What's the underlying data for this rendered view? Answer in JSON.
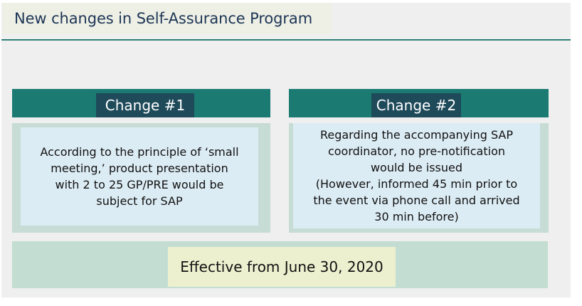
{
  "title": "New changes in Self-Assurance Program",
  "changes": [
    {
      "label": "Change #1",
      "text": "According to the principle of ‘small\nmeeting,’ product presentation\nwith 2 to 25 GP/PRE would be\nsubject for SAP"
    },
    {
      "label": "Change #2",
      "text": "Regarding the accompanying SAP\ncoordinator, no pre-notification\nwould be issued\n(However, informed 45 min prior to\nthe event via phone call and arrived\n30 min before)"
    }
  ],
  "effective": "Effective from June 30, 2020",
  "colors": {
    "header_teal": "#1b7b73",
    "chip_navy": "#1e4a5a",
    "panel_body": "#c8dcd6",
    "inner_box": "#dcecf4",
    "effective_box": "#edf0cf",
    "title_text": "#1d3554"
  }
}
